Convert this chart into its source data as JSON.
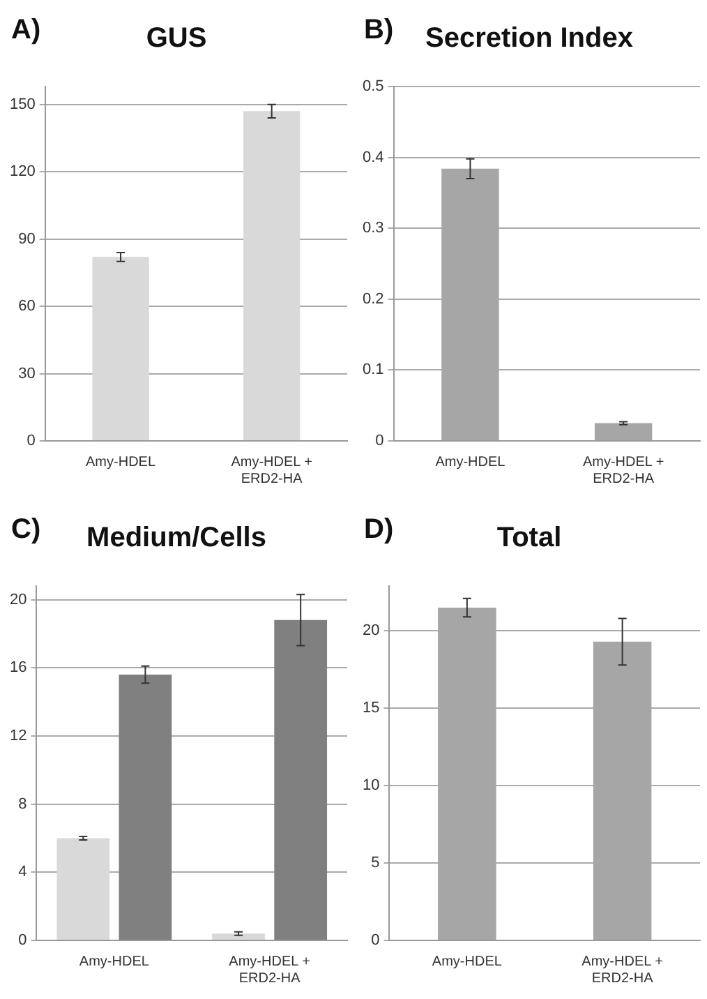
{
  "chart_data": [
    {
      "type": "bar",
      "title": "GUS",
      "annotations": [
        "A)"
      ],
      "categories": [
        "Amy-HDEL",
        "Amy-HDEL + ERD2-HA"
      ],
      "values": [
        82,
        147
      ],
      "errors": [
        2,
        3
      ],
      "color": "#d9d9d9",
      "ylim": [
        0,
        158
      ],
      "yticks": [
        0,
        30,
        60,
        90,
        120,
        150
      ],
      "grid": "y",
      "legend": false
    },
    {
      "type": "bar",
      "title": "Secretion Index",
      "annotations": [
        "B)"
      ],
      "categories": [
        "Amy-HDEL",
        "Amy-HDEL + ERD2-HA"
      ],
      "values": [
        0.384,
        0.025
      ],
      "errors": [
        0.014,
        0.002
      ],
      "color": "#a6a6a6",
      "ylim": [
        0,
        0.5
      ],
      "yticks": [
        0,
        0.1,
        0.2,
        0.3,
        0.4,
        0.5
      ],
      "grid": "y",
      "legend": false
    },
    {
      "type": "bar",
      "title": "Medium/Cells",
      "annotations": [
        "C)"
      ],
      "categories": [
        "Amy-HDEL",
        "Amy-HDEL + ERD2-HA"
      ],
      "series": [
        {
          "color": "#d9d9d9",
          "values": [
            6.0,
            0.4
          ],
          "errors": [
            0.1,
            0.1
          ]
        },
        {
          "color": "#808080",
          "values": [
            15.6,
            18.8
          ],
          "errors": [
            0.5,
            1.5
          ]
        }
      ],
      "ylim": [
        0,
        20.8
      ],
      "yticks": [
        0,
        4,
        8,
        12,
        16,
        20
      ],
      "grid": "y",
      "legend": false
    },
    {
      "type": "bar",
      "title": "Total",
      "annotations": [
        "D)"
      ],
      "categories": [
        "Amy-HDEL",
        "Amy-HDEL + ERD2-HA"
      ],
      "values": [
        21.5,
        19.3
      ],
      "errors": [
        0.6,
        1.5
      ],
      "color": "#a6a6a6",
      "ylim": [
        0,
        22.9
      ],
      "yticks": [
        0,
        5,
        10,
        15,
        20
      ],
      "grid": "y",
      "legend": false
    }
  ]
}
